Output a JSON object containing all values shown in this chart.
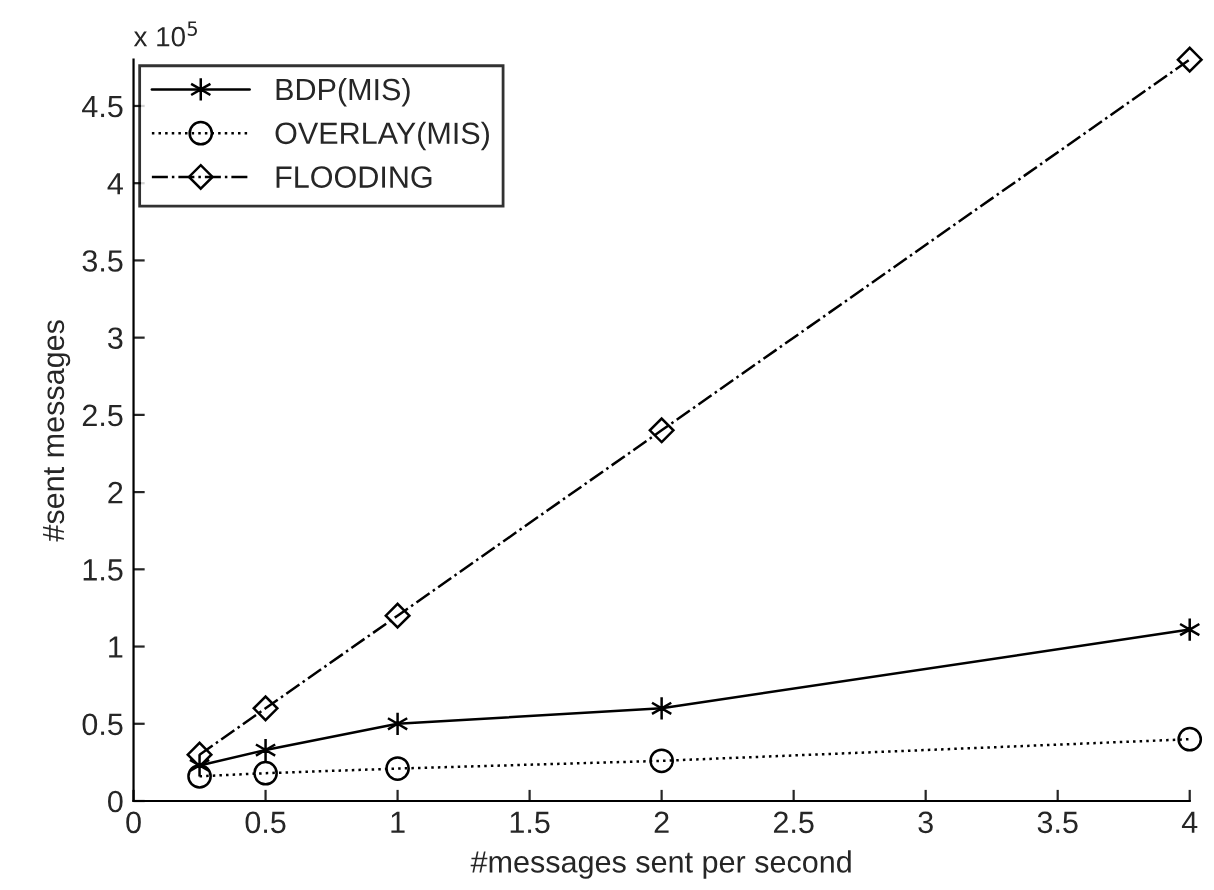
{
  "chart_data": {
    "type": "line",
    "xlabel": "#messages sent per second",
    "ylabel": "#sent messages",
    "annotations": [
      "x 10$^{5}$"
    ],
    "xlim": [
      0,
      4
    ],
    "xticks": [
      0,
      0.5,
      1,
      1.5,
      2,
      2.5,
      3,
      3.5,
      4
    ],
    "ylim": [
      0,
      4.8
    ],
    "yticks": [
      0,
      0.5,
      1,
      1.5,
      2,
      2.5,
      3,
      3.5,
      4,
      4.5
    ],
    "grid": false,
    "legend": "top left",
    "series": [
      {
        "name": "BDP(MIS)",
        "color": "#000000",
        "marker": "cross",
        "line_style": "solid",
        "x": [
          0.25,
          0.5,
          1,
          2,
          4
        ],
        "values": [
          0.23,
          0.33,
          0.5,
          0.6,
          1.11
        ]
      },
      {
        "name": "OVERLAY(MIS)",
        "color": "#000000",
        "marker": "circle",
        "line_style": "dotted",
        "x": [
          0.25,
          0.5,
          1,
          2,
          4
        ],
        "values": [
          0.16,
          0.18,
          0.21,
          0.26,
          0.4
        ]
      },
      {
        "name": "FLOODING",
        "color": "#000000",
        "marker": "diamond",
        "line_style": "dashdot",
        "x": [
          0.25,
          0.5,
          1,
          2,
          4
        ],
        "values": [
          0.3,
          0.6,
          1.2,
          2.4,
          4.8
        ]
      }
    ]
  }
}
